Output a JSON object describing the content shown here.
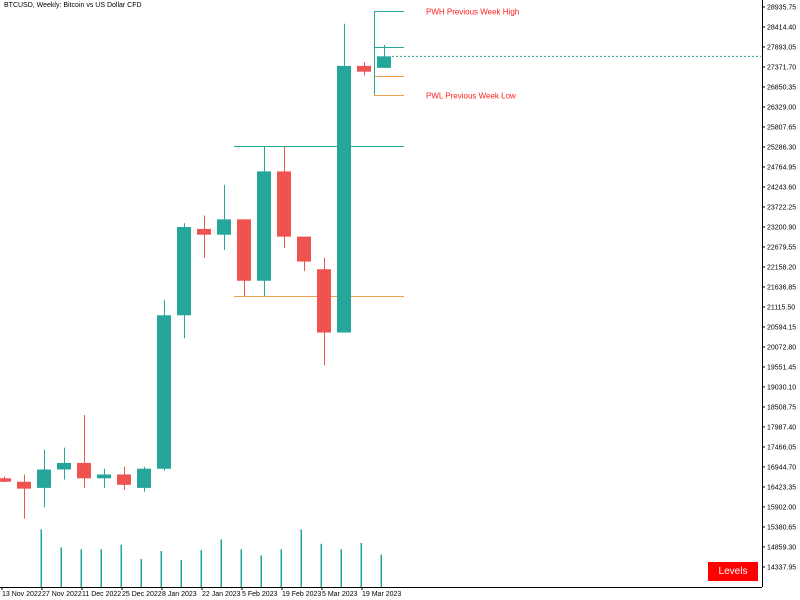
{
  "chart_title": "BTCUSD, Weekly:  Bitcoin vs US Dollar CFD",
  "levels_button_label": "Levels",
  "colors": {
    "bull": "#26a69a",
    "bear": "#ef5350",
    "volume": "#26a69a",
    "pwh": "#26a69a",
    "pwl": "#f0a04b",
    "label_text": "#ff2020",
    "axis": "#000000"
  },
  "chart_data": {
    "type": "candlestick",
    "symbol": "BTCUSD",
    "timeframe": "Weekly",
    "ylim": [
      13900,
      29100
    ],
    "y_ticks": [
      "28935.75",
      "28414.40",
      "27893.05",
      "27371.70",
      "26850.35",
      "26329.00",
      "25807.65",
      "25286.30",
      "24764.95",
      "24243.60",
      "23722.25",
      "23200.90",
      "22679.55",
      "22158.20",
      "21636.85",
      "21115.50",
      "20594.15",
      "20072.80",
      "19551.45",
      "19030.10",
      "18508.75",
      "17987.40",
      "17466.05",
      "16944.70",
      "16423.35",
      "15902.00",
      "15380.65",
      "14859.30",
      "14337.95"
    ],
    "x_tick_labels": [
      {
        "label": "13 Nov 2022",
        "index": 0
      },
      {
        "label": "27 Nov 2022",
        "index": 2
      },
      {
        "label": "11 Dec 2022",
        "index": 4
      },
      {
        "label": "25 Dec 2022",
        "index": 6
      },
      {
        "label": "8 Jan 2023",
        "index": 8
      },
      {
        "label": "22 Jan 2023",
        "index": 10
      },
      {
        "label": "5 Feb 2023",
        "index": 12
      },
      {
        "label": "19 Feb 2023",
        "index": 14
      },
      {
        "label": "5 Mar 2023",
        "index": 16
      },
      {
        "label": "19 Mar 2023",
        "index": 18
      }
    ],
    "candles": [
      {
        "open": 16650,
        "high": 16700,
        "low": 16550,
        "close": 16560
      },
      {
        "open": 16560,
        "high": 16750,
        "low": 15600,
        "close": 16380
      },
      {
        "open": 16400,
        "high": 17400,
        "low": 15900,
        "close": 16880
      },
      {
        "open": 16880,
        "high": 17450,
        "low": 16620,
        "close": 17050
      },
      {
        "open": 17050,
        "high": 18300,
        "low": 16400,
        "close": 16650
      },
      {
        "open": 16650,
        "high": 16900,
        "low": 16400,
        "close": 16750
      },
      {
        "open": 16750,
        "high": 16950,
        "low": 16350,
        "close": 16480
      },
      {
        "open": 16400,
        "high": 16950,
        "low": 16300,
        "close": 16900
      },
      {
        "open": 16900,
        "high": 21300,
        "low": 16850,
        "close": 20900
      },
      {
        "open": 20900,
        "high": 23300,
        "low": 20300,
        "close": 23200
      },
      {
        "open": 23150,
        "high": 23500,
        "low": 22400,
        "close": 23000
      },
      {
        "open": 23000,
        "high": 24300,
        "low": 22600,
        "close": 23400
      },
      {
        "open": 23400,
        "high": 23400,
        "low": 21400,
        "close": 21800
      },
      {
        "open": 21800,
        "high": 25300,
        "low": 21400,
        "close": 24650
      },
      {
        "open": 24650,
        "high": 25300,
        "low": 22650,
        "close": 22950
      },
      {
        "open": 22950,
        "high": 22950,
        "low": 22050,
        "close": 22300
      },
      {
        "open": 22100,
        "high": 22400,
        "low": 19600,
        "close": 20450
      },
      {
        "open": 20450,
        "high": 28500,
        "low": 20450,
        "close": 27400
      },
      {
        "open": 27400,
        "high": 27500,
        "low": 27150,
        "close": 27250
      },
      {
        "open": 27350,
        "high": 27950,
        "low": 27350,
        "close": 27650
      }
    ],
    "volumes": [
      0,
      0.64,
      0.44,
      0.42,
      0.42,
      0.47,
      0.31,
      0.4,
      0.3,
      0.41,
      0.53,
      0.42,
      0.35,
      0.42,
      0.64,
      0.48,
      0.42,
      0.49,
      0.36,
      0
    ],
    "levels": [
      {
        "name": "PWH",
        "label": "PWH Previous Week High",
        "price": 28830,
        "from_index": 18,
        "to_index": 20,
        "color": "#26a69a"
      },
      {
        "name": "PWL",
        "label": "PWL Previous Week Low",
        "price": 26650,
        "from_index": 18,
        "to_index": 20,
        "color": "#f0a04b"
      },
      {
        "name": "high-level",
        "label": "",
        "price": 27895,
        "from_index": 18,
        "to_index": 20,
        "color": "#26a69a"
      },
      {
        "name": "low-level",
        "label": "",
        "price": 27150,
        "from_index": 18,
        "to_index": 20,
        "color": "#f0a04b"
      },
      {
        "name": "range-high",
        "label": "",
        "price": 25300,
        "from_index": 11,
        "to_index": 20,
        "color": "#26a69a"
      },
      {
        "name": "range-low",
        "label": "",
        "price": 21400,
        "from_index": 11,
        "to_index": 20,
        "color": "#f0a04b"
      }
    ],
    "current_price": 27650
  }
}
